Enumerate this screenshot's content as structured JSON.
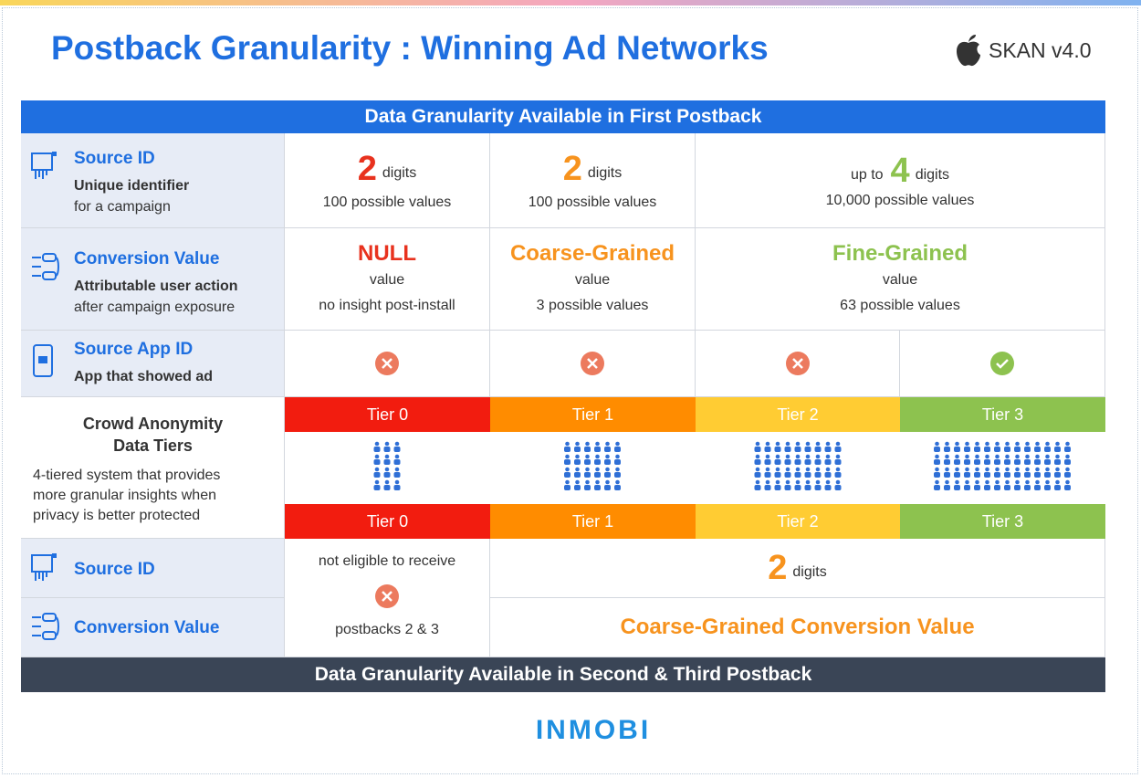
{
  "header": {
    "title": "Postback Granularity : Winning Ad Networks",
    "badge": "SKAN v4.0"
  },
  "first_postback_banner": "Data Granularity Available in First Postback",
  "source_id_row": {
    "label": "Source ID",
    "description": [
      "Unique identifier",
      "for a campaign"
    ],
    "cells": [
      {
        "number": "2",
        "unit": "digits",
        "note": "100 possible values"
      },
      {
        "number": "2",
        "unit": "digits",
        "note": "100 possible values"
      },
      {
        "prefix": "up to",
        "number": "4",
        "unit": "digits",
        "note": "10,000 possible values"
      }
    ]
  },
  "conversion_value_row": {
    "label": "Conversion Value",
    "description": [
      "Attributable user action",
      "after campaign exposure"
    ],
    "cells": [
      {
        "headline": "NULL",
        "sub": "value",
        "note": "no insight post-install"
      },
      {
        "headline": "Coarse-Grained",
        "sub": "value",
        "note": "3 possible values"
      },
      {
        "headline": "Fine-Grained",
        "sub": "value",
        "note": "63 possible values"
      }
    ]
  },
  "source_app_id_row": {
    "label": "Source App ID",
    "description": [
      "App that showed ad"
    ]
  },
  "tiers_row": {
    "title": [
      "Crowd Anonymity",
      "Data Tiers"
    ],
    "description": [
      "4-tiered system that provides",
      "more granular insights when",
      "privacy is better protected"
    ],
    "tiers_top": [
      "Tier 0",
      "Tier 1",
      "Tier 2",
      "Tier 3"
    ],
    "tiers_bottom": [
      "Tier 0",
      "Tier 1",
      "Tier 2",
      "Tier 3"
    ]
  },
  "later_postbacks": {
    "source_id_label": "Source ID",
    "conversion_value_label": "Conversion Value",
    "not_eligible": [
      "not eligible to receive",
      "postbacks 2 & 3"
    ],
    "source_id": {
      "number": "2",
      "unit": "digits"
    },
    "conversion_value": "Coarse-Grained Conversion Value"
  },
  "second_postback_banner": "Data Granularity Available in Second & Third Postback",
  "footer": {
    "logo": "INMOBI"
  }
}
